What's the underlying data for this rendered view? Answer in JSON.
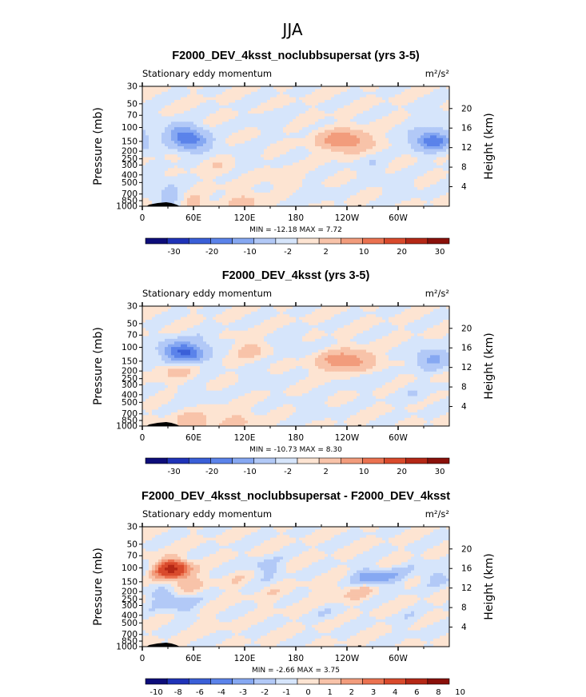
{
  "main_title": "JJA",
  "colors": {
    "scale": [
      "#0d0d7a",
      "#1f33b8",
      "#3a5fd8",
      "#5b83ea",
      "#86a8f2",
      "#b2c9f7",
      "#d6e5fb",
      "#fde4d2",
      "#f8c3a9",
      "#f29c7c",
      "#eb7250",
      "#d94a2c",
      "#b52816",
      "#8a100a"
    ],
    "land": "#000000"
  },
  "chart_data": [
    {
      "type": "heatmap",
      "title": "F2000_DEV_4ksst_noclubbsupersat (yrs 3-5)",
      "left_label": "Stationary eddy momentum",
      "units": "m²/s²",
      "ylabel": "Pressure (mb)",
      "ylabel_right": "Height (km)",
      "x_ticks": [
        "0",
        "60E",
        "120E",
        "180",
        "120W",
        "60W"
      ],
      "y_ticks": [
        "30",
        "50",
        "70",
        "100",
        "150",
        "200",
        "250",
        "300",
        "400",
        "500",
        "700",
        "850",
        "1000"
      ],
      "y_ticks_right": [
        "20",
        "16",
        "12",
        "8",
        "4"
      ],
      "min_max_text": "MIN = -12.18   MAX =    7.72",
      "colorbar_labels": [
        "-30",
        "-20",
        "-10",
        "-2",
        "2",
        "10",
        "20",
        "30"
      ],
      "features": [
        {
          "lon": 45,
          "p": 115,
          "v": -7
        },
        {
          "lon": 58,
          "p": 150,
          "v": -11
        },
        {
          "lon": 220,
          "p": 140,
          "v": 4
        },
        {
          "lon": 238,
          "p": 150,
          "v": 7
        },
        {
          "lon": 255,
          "p": 145,
          "v": 3
        },
        {
          "lon": 330,
          "p": 140,
          "v": -5
        },
        {
          "lon": 345,
          "p": 150,
          "v": -9
        },
        {
          "lon": 345,
          "p": 70,
          "v": -1.5
        },
        {
          "lon": 150,
          "p": 80,
          "v": -1.5
        },
        {
          "lon": 120,
          "p": 230,
          "v": -1.5
        },
        {
          "lon": 270,
          "p": 300,
          "v": -1.5
        },
        {
          "lon": 300,
          "p": 600,
          "v": -1.5
        },
        {
          "lon": 25,
          "p": 500,
          "v": -1.5
        },
        {
          "lon": 200,
          "p": 700,
          "v": -1.5
        },
        {
          "lon": 90,
          "p": 300,
          "v": 1.5
        },
        {
          "lon": 165,
          "p": 450,
          "v": 1.5
        },
        {
          "lon": 40,
          "p": 850,
          "v": -5
        },
        {
          "lon": 55,
          "p": 900,
          "v": 5
        },
        {
          "lon": 120,
          "p": 900,
          "v": 3
        }
      ]
    },
    {
      "type": "heatmap",
      "title": "F2000_DEV_4ksst (yrs 3-5)",
      "left_label": "Stationary eddy momentum",
      "units": "m²/s²",
      "ylabel": "Pressure (mb)",
      "ylabel_right": "Height (km)",
      "x_ticks": [
        "0",
        "60E",
        "120E",
        "180",
        "120W",
        "60W"
      ],
      "y_ticks": [
        "30",
        "50",
        "70",
        "100",
        "150",
        "200",
        "250",
        "300",
        "400",
        "500",
        "700",
        "850",
        "1000"
      ],
      "y_ticks_right": [
        "20",
        "16",
        "12",
        "8",
        "4"
      ],
      "min_max_text": "MIN = -10.73   MAX =    8.30",
      "colorbar_labels": [
        "-30",
        "-20",
        "-10",
        "-2",
        "2",
        "10",
        "20",
        "30"
      ],
      "features": [
        {
          "lon": 40,
          "p": 110,
          "v": -8
        },
        {
          "lon": 55,
          "p": 120,
          "v": -11
        },
        {
          "lon": 125,
          "p": 110,
          "v": 3
        },
        {
          "lon": 40,
          "p": 200,
          "v": 3
        },
        {
          "lon": 220,
          "p": 150,
          "v": 4
        },
        {
          "lon": 240,
          "p": 150,
          "v": 7
        },
        {
          "lon": 258,
          "p": 145,
          "v": 3
        },
        {
          "lon": 340,
          "p": 140,
          "v": -7
        },
        {
          "lon": 75,
          "p": 80,
          "v": -1.5
        },
        {
          "lon": 175,
          "p": 85,
          "v": -1.5
        },
        {
          "lon": 140,
          "p": 250,
          "v": -1.5
        },
        {
          "lon": 260,
          "p": 250,
          "v": -1.5
        },
        {
          "lon": 320,
          "p": 400,
          "v": -1.5
        },
        {
          "lon": 60,
          "p": 400,
          "v": -1.5
        },
        {
          "lon": 200,
          "p": 600,
          "v": -1.5
        },
        {
          "lon": 60,
          "p": 900,
          "v": 5
        },
        {
          "lon": 110,
          "p": 900,
          "v": 3
        }
      ]
    },
    {
      "type": "heatmap",
      "title": "F2000_DEV_4ksst_noclubbsupersat - F2000_DEV_4ksst",
      "left_label": "Stationary eddy momentum",
      "units": "m²/s²",
      "ylabel": "Pressure (mb)",
      "ylabel_right": "Height (km)",
      "x_ticks": [
        "0",
        "60E",
        "120E",
        "180",
        "120W",
        "60W"
      ],
      "y_ticks": [
        "30",
        "50",
        "70",
        "100",
        "150",
        "200",
        "250",
        "300",
        "400",
        "500",
        "700",
        "850",
        "1000"
      ],
      "y_ticks_right": [
        "20",
        "16",
        "12",
        "8",
        "4"
      ],
      "min_max_text": "MIN =  -2.66   MAX =    3.75",
      "colorbar_labels": [
        "-10",
        "-8",
        "-6",
        "-4",
        "-3",
        "-2",
        "-1",
        "0",
        "1",
        "2",
        "3",
        "4",
        "6",
        "8",
        "10"
      ],
      "features": [
        {
          "lon": 35,
          "p": 100,
          "v": 2.5
        },
        {
          "lon": 35,
          "p": 105,
          "v": 3.8
        },
        {
          "lon": 50,
          "p": 150,
          "v": 1.5
        },
        {
          "lon": 25,
          "p": 230,
          "v": -1.5
        },
        {
          "lon": 45,
          "p": 300,
          "v": -1.5
        },
        {
          "lon": 105,
          "p": 150,
          "v": 0.5
        },
        {
          "lon": 145,
          "p": 100,
          "v": -1.5
        },
        {
          "lon": 265,
          "p": 130,
          "v": -2.2
        },
        {
          "lon": 290,
          "p": 130,
          "v": -1.5
        },
        {
          "lon": 340,
          "p": 120,
          "v": -1.5
        },
        {
          "lon": 255,
          "p": 200,
          "v": 1.2
        },
        {
          "lon": 220,
          "p": 200,
          "v": 0.8
        },
        {
          "lon": 225,
          "p": 400,
          "v": -0.5
        },
        {
          "lon": 320,
          "p": 500,
          "v": -0.5
        },
        {
          "lon": 160,
          "p": 250,
          "v": 0.5
        },
        {
          "lon": 80,
          "p": 500,
          "v": 0.5
        }
      ]
    }
  ]
}
